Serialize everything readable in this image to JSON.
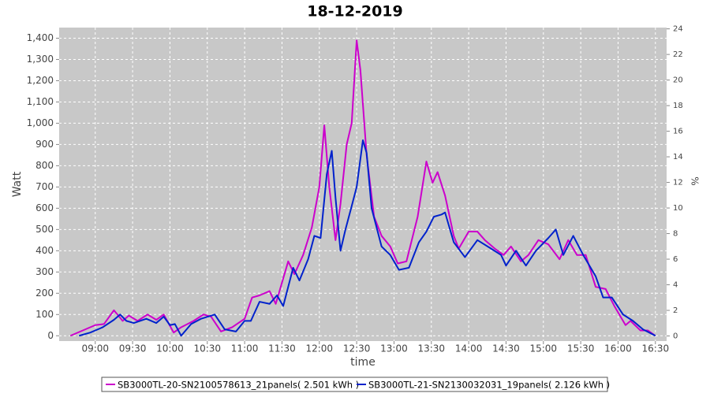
{
  "chart_data": {
    "type": "line",
    "title": "18-12-2019",
    "x_label": "time",
    "y_label": "Watt",
    "y2_label": "%",
    "xlim": [
      "08:31",
      "16:39"
    ],
    "xticks": [
      "09:00",
      "09:30",
      "10:00",
      "10:30",
      "11:00",
      "11:30",
      "12:00",
      "12:30",
      "13:00",
      "13:30",
      "14:00",
      "14:30",
      "15:00",
      "15:30",
      "16:00",
      "16:30"
    ],
    "ylim": [
      -25,
      1450
    ],
    "yticks": [
      0,
      100,
      200,
      300,
      400,
      500,
      600,
      700,
      800,
      900,
      {
        "value": 1000,
        "label": "1,000"
      },
      {
        "value": 1100,
        "label": "1,100"
      },
      {
        "value": 1200,
        "label": "1,200"
      },
      {
        "value": 1300,
        "label": "1,300"
      },
      {
        "value": 1400,
        "label": "1,400"
      }
    ],
    "y2lim": [
      -0.4,
      24.1
    ],
    "y2ticks": [
      0,
      2,
      4,
      6,
      8,
      10,
      12,
      14,
      16,
      18,
      20,
      22,
      24
    ],
    "grid": true,
    "legend": "bottom",
    "series": [
      {
        "name": "SB3000TL-20-SN2100578613_21panels( 2.501 kWh )",
        "color": "#cc00cc",
        "x": [
          "08:40",
          "08:50",
          "09:00",
          "09:07",
          "09:15",
          "09:22",
          "09:27",
          "09:34",
          "09:42",
          "09:49",
          "09:55",
          "10:03",
          "10:09",
          "10:19",
          "10:27",
          "10:33",
          "10:41",
          "10:50",
          "11:00",
          "11:06",
          "11:12",
          "11:20",
          "11:25",
          "11:35",
          "11:40",
          "11:47",
          "11:54",
          "12:00",
          "12:04",
          "12:08",
          "12:13",
          "12:17",
          "12:22",
          "12:26",
          "12:30",
          "12:33",
          "12:38",
          "12:44",
          "12:50",
          "12:57",
          "13:03",
          "13:10",
          "13:19",
          "13:26",
          "13:31",
          "13:35",
          "13:41",
          "13:48",
          "13:52",
          "14:00",
          "14:07",
          "14:13",
          "14:21",
          "14:28",
          "14:34",
          "14:42",
          "14:48",
          "14:56",
          "15:04",
          "15:13",
          "15:20",
          "15:27",
          "15:34",
          "15:42",
          "15:50",
          "15:57",
          "16:06",
          "16:10",
          "16:18",
          "16:24",
          "16:30"
        ],
        "values": [
          0,
          25,
          50,
          55,
          120,
          70,
          95,
          70,
          100,
          75,
          100,
          15,
          40,
          70,
          100,
          90,
          20,
          40,
          80,
          180,
          190,
          210,
          150,
          350,
          290,
          380,
          510,
          700,
          990,
          700,
          450,
          620,
          900,
          1000,
          1390,
          1250,
          850,
          560,
          470,
          420,
          340,
          350,
          560,
          820,
          720,
          770,
          660,
          470,
          410,
          490,
          490,
          450,
          410,
          380,
          420,
          350,
          380,
          450,
          430,
          360,
          450,
          380,
          380,
          230,
          220,
          140,
          50,
          70,
          25,
          25,
          0
        ]
      },
      {
        "name": "SB3000TL-21-SN2130032031_19panels( 2.126 kWh )",
        "color": "#0022cc",
        "x": [
          "08:47",
          "08:56",
          "09:06",
          "09:15",
          "09:20",
          "09:25",
          "09:31",
          "09:41",
          "09:49",
          "09:55",
          "10:00",
          "10:04",
          "10:09",
          "10:17",
          "10:25",
          "10:36",
          "10:44",
          "10:53",
          "11:00",
          "11:05",
          "11:12",
          "11:20",
          "11:26",
          "11:31",
          "11:39",
          "11:44",
          "11:51",
          "11:56",
          "12:01",
          "12:06",
          "12:10",
          "12:13",
          "12:17",
          "12:21",
          "12:26",
          "12:30",
          "12:35",
          "12:38",
          "12:42",
          "12:50",
          "12:57",
          "13:04",
          "13:12",
          "13:20",
          "13:26",
          "13:32",
          "13:38",
          "13:41",
          "13:48",
          "13:57",
          "14:07",
          "14:18",
          "14:26",
          "14:30",
          "14:38",
          "14:46",
          "14:54",
          "15:04",
          "15:10",
          "15:16",
          "15:24",
          "15:32",
          "15:42",
          "15:48",
          "15:55",
          "16:04",
          "16:12",
          "16:20",
          "16:30"
        ],
        "values": [
          0,
          15,
          40,
          75,
          100,
          70,
          60,
          80,
          60,
          90,
          50,
          55,
          0,
          55,
          80,
          100,
          30,
          20,
          70,
          70,
          160,
          150,
          190,
          140,
          320,
          260,
          360,
          470,
          460,
          760,
          870,
          650,
          400,
          500,
          610,
          700,
          920,
          860,
          600,
          420,
          380,
          310,
          320,
          440,
          490,
          560,
          570,
          580,
          440,
          370,
          450,
          410,
          380,
          330,
          400,
          330,
          400,
          460,
          500,
          380,
          470,
          380,
          280,
          180,
          180,
          100,
          70,
          30,
          0
        ]
      }
    ]
  }
}
